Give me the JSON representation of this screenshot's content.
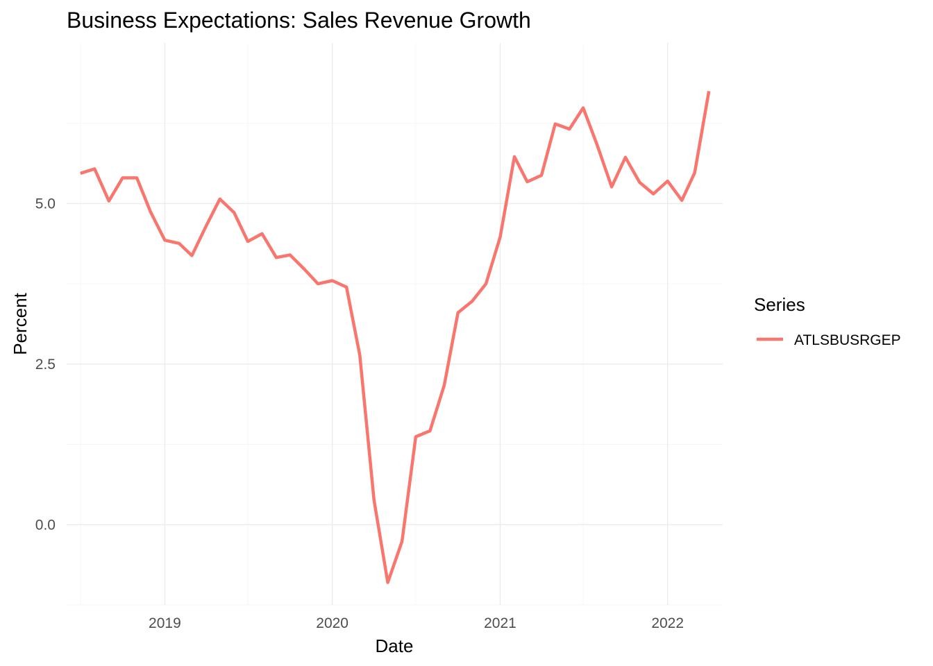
{
  "chart_data": {
    "type": "line",
    "title": "Business Expectations: Sales Revenue Growth",
    "xlabel": "Date",
    "ylabel": "Percent",
    "x_ticks": [
      {
        "date": "2019-01-01",
        "label": "2019"
      },
      {
        "date": "2020-01-01",
        "label": "2020"
      },
      {
        "date": "2021-01-01",
        "label": "2021"
      },
      {
        "date": "2022-01-01",
        "label": "2022"
      }
    ],
    "y_ticks": [
      {
        "value": 0,
        "label": "0.0"
      },
      {
        "value": 2.5,
        "label": "2.5"
      },
      {
        "value": 5,
        "label": "5.0"
      }
    ],
    "xlim": [
      "2018-06-01",
      "2022-05-01"
    ],
    "ylim": [
      -1.25,
      7.5
    ],
    "grid": true,
    "legend": {
      "title": "Series",
      "position": "right"
    },
    "series": [
      {
        "name": "ATLSBUSRGEP",
        "color": "#F8766D",
        "x": [
          "2018-07-01",
          "2018-08-01",
          "2018-09-01",
          "2018-10-01",
          "2018-11-01",
          "2018-12-01",
          "2019-01-01",
          "2019-02-01",
          "2019-03-01",
          "2019-04-01",
          "2019-05-01",
          "2019-06-01",
          "2019-07-01",
          "2019-08-01",
          "2019-09-01",
          "2019-10-01",
          "2019-11-01",
          "2019-12-01",
          "2020-01-01",
          "2020-02-01",
          "2020-03-01",
          "2020-04-01",
          "2020-05-01",
          "2020-06-01",
          "2020-07-01",
          "2020-08-01",
          "2020-09-01",
          "2020-10-01",
          "2020-11-01",
          "2020-12-01",
          "2021-01-01",
          "2021-02-01",
          "2021-03-01",
          "2021-04-01",
          "2021-05-01",
          "2021-06-01",
          "2021-07-01",
          "2021-08-01",
          "2021-09-01",
          "2021-10-01",
          "2021-11-01",
          "2021-12-01",
          "2022-01-01",
          "2022-02-01",
          "2022-03-01",
          "2022-04-01"
        ],
        "values": [
          5.47,
          5.54,
          5.04,
          5.4,
          5.4,
          4.87,
          4.43,
          4.38,
          4.19,
          4.65,
          5.07,
          4.86,
          4.41,
          4.53,
          4.16,
          4.2,
          3.98,
          3.75,
          3.8,
          3.7,
          2.64,
          0.38,
          -0.9,
          -0.26,
          1.37,
          1.46,
          2.17,
          3.3,
          3.48,
          3.75,
          4.48,
          5.73,
          5.34,
          5.44,
          6.24,
          6.16,
          6.49,
          5.9,
          5.26,
          5.72,
          5.33,
          5.15,
          5.35,
          5.05,
          5.48,
          6.75
        ]
      }
    ]
  }
}
